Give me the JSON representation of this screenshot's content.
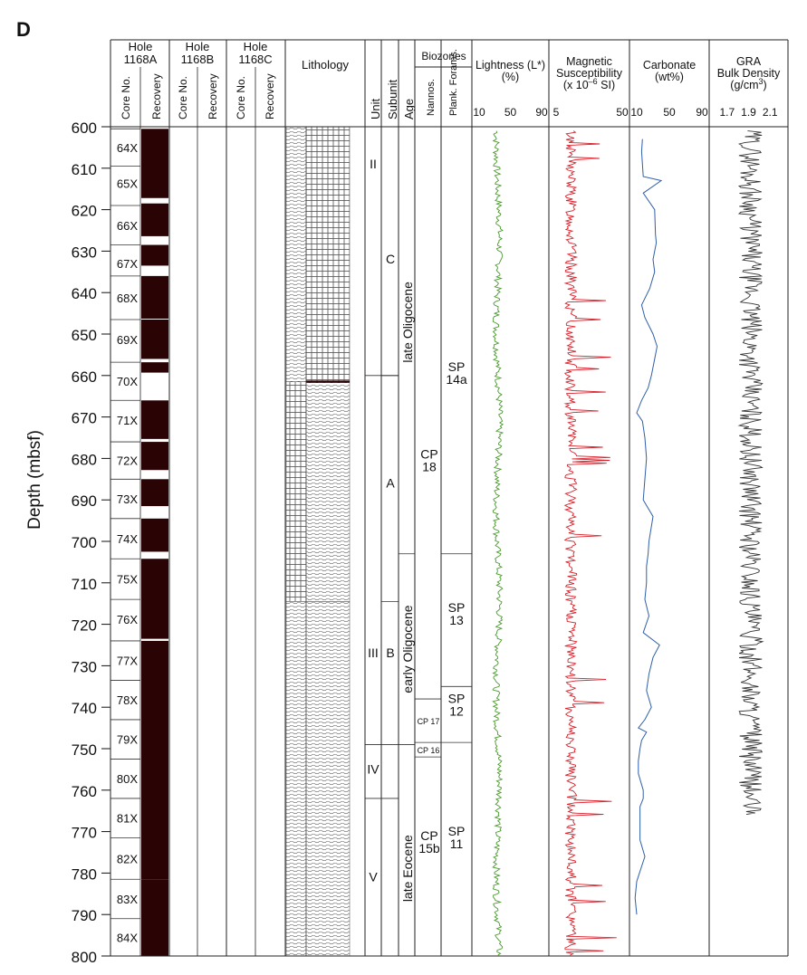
{
  "panel_label": "D",
  "y_axis": {
    "label": "Depth (mbsf)",
    "min": 600,
    "max": 800,
    "ticks": [
      "600",
      "610",
      "620",
      "630",
      "640",
      "650",
      "660",
      "670",
      "680",
      "690",
      "700",
      "710",
      "720",
      "730",
      "740",
      "750",
      "760",
      "770",
      "780",
      "790",
      "800"
    ]
  },
  "holes": [
    {
      "title1": "Hole",
      "title2": "1168A"
    },
    {
      "title1": "Hole",
      "title2": "1168B"
    },
    {
      "title1": "Hole",
      "title2": "1168C"
    }
  ],
  "sub_headers": {
    "core_no": "Core No.",
    "recovery": "Recovery"
  },
  "lithology_header": "Lithology",
  "strat_headers": {
    "unit": "Unit",
    "subunit": "Subunit",
    "age": "Age",
    "biozones": "Biozones",
    "nannos": "Nannos.",
    "plank": "Plank. Forams."
  },
  "cores": [
    {
      "label": "64X",
      "top": 600.5,
      "bottom": 609.5,
      "rec_bottom": 617.2
    },
    {
      "label": "65X",
      "top": 609.5,
      "bottom": 617.7,
      "rec_bottom": 617.2
    },
    {
      "label": "66X",
      "top": 619.0,
      "bottom": 628.5,
      "rec_bottom": 626.4
    },
    {
      "label": "67X",
      "top": 628.5,
      "bottom": 637.5,
      "rec_bottom": 633.5
    },
    {
      "label": "68X",
      "top": 636.0,
      "bottom": 646.5,
      "rec_bottom": 646.3
    },
    {
      "label": "69X",
      "top": 646.5,
      "bottom": 656.2,
      "rec_bottom": 656.0
    },
    {
      "label": "70X",
      "top": 656.8,
      "bottom": 666.0,
      "rec_bottom": 659.3
    },
    {
      "label": "71X",
      "top": 666.0,
      "bottom": 675.4,
      "rec_bottom": 675.3
    },
    {
      "label": "72X",
      "top": 676.0,
      "bottom": 685.0,
      "rec_bottom": 682.8
    },
    {
      "label": "73X",
      "top": 685.0,
      "bottom": 694.5,
      "rec_bottom": 691.5
    },
    {
      "label": "74X",
      "top": 694.5,
      "bottom": 704.2,
      "rec_bottom": 702.5
    },
    {
      "label": "75X",
      "top": 704.2,
      "bottom": 714.0,
      "rec_bottom": 723.5
    },
    {
      "label": "76X",
      "top": 714.0,
      "bottom": 723.5,
      "rec_bottom": 723.5
    },
    {
      "label": "77X",
      "top": 724.0,
      "bottom": 733.5,
      "rec_bottom": 781.5
    },
    {
      "label": "78X",
      "top": 733.5,
      "bottom": 743.0,
      "rec_bottom": 781.5
    },
    {
      "label": "79X",
      "top": 743.0,
      "bottom": 752.5,
      "rec_bottom": 781.5
    },
    {
      "label": "80X",
      "top": 752.5,
      "bottom": 762.0,
      "rec_bottom": 781.5
    },
    {
      "label": "81X",
      "top": 762.0,
      "bottom": 771.5,
      "rec_bottom": 781.5
    },
    {
      "label": "82X",
      "top": 771.5,
      "bottom": 781.5,
      "rec_bottom": 781.5
    },
    {
      "label": "83X",
      "top": 781.5,
      "bottom": 791.0,
      "rec_bottom": 800
    },
    {
      "label": "84X",
      "top": 791.0,
      "bottom": 800.0,
      "rec_bottom": 800
    }
  ],
  "recovery_blocks": [
    [
      600.5,
      617.2
    ],
    [
      618.5,
      626.4
    ],
    [
      628.5,
      633.5
    ],
    [
      636.0,
      646.3
    ],
    [
      646.5,
      656.0
    ],
    [
      656.8,
      659.3
    ],
    [
      666.0,
      675.3
    ],
    [
      676.0,
      682.8
    ],
    [
      685.0,
      691.5
    ],
    [
      694.5,
      702.5
    ],
    [
      704.2,
      723.5
    ],
    [
      724.0,
      781.5
    ],
    [
      781.5,
      800
    ]
  ],
  "lithology": [
    {
      "from": 600,
      "to": 661.5,
      "left": "wavy",
      "right": "brick"
    },
    {
      "from": 661.5,
      "to": 714.5,
      "left": "brick",
      "right": "wavy"
    },
    {
      "from": 714.5,
      "to": 800,
      "left": "wavy",
      "right": "wavy"
    }
  ],
  "units": [
    {
      "label": "II",
      "from": 600,
      "to": 660
    },
    {
      "label": "III",
      "from": 660,
      "to": 749
    },
    {
      "label": "IV",
      "from": 749,
      "to": 762
    },
    {
      "label": "V",
      "from": 762,
      "to": 800
    }
  ],
  "subunits": [
    {
      "label": "C",
      "from": 600,
      "to": 660
    },
    {
      "label": "A",
      "from": 660,
      "to": 714.5
    },
    {
      "label": "B",
      "from": 714.5,
      "to": 749
    }
  ],
  "ages": [
    {
      "label": "late Oligocene",
      "from": 600,
      "to": 703
    },
    {
      "label": "early Oligocene",
      "from": 703,
      "to": 749
    },
    {
      "label": "late Eocene",
      "from": 749,
      "to": 800
    }
  ],
  "nannos": [
    {
      "label1": "CP",
      "label2": "18",
      "from": 600,
      "to": 738,
      "big": true
    },
    {
      "label1": "CP 17",
      "label2": "",
      "from": 738,
      "to": 748.5,
      "big": false
    },
    {
      "label1": "CP 16",
      "label2": "",
      "from": 748.5,
      "to": 752,
      "big": false
    },
    {
      "label1": "CP",
      "label2": "15b",
      "from": 752,
      "to": 800,
      "big": true
    }
  ],
  "forams": [
    {
      "label1": "SP",
      "label2": "14a",
      "from": 600,
      "to": 703
    },
    {
      "label1": "SP",
      "label2": "13",
      "from": 703,
      "to": 735
    },
    {
      "label1": "SP",
      "label2": "12",
      "from": 735,
      "to": 748.5
    },
    {
      "label1": "SP",
      "label2": "11",
      "from": 748.5,
      "to": 800
    }
  ],
  "logs": [
    {
      "key": "lightness",
      "title1": "Lightness (L*)",
      "title2": "(%)",
      "ticks": [
        "10",
        "50",
        "90"
      ],
      "min": 10,
      "max": 90,
      "color": "#4a9a2c"
    },
    {
      "key": "magsus",
      "title1": "Magnetic",
      "title2": "Susceptibility",
      "title3": "(x 10",
      "title3_sup": "–6",
      "title3_tail": " SI)",
      "ticks": [
        "5",
        "50"
      ],
      "min": 5,
      "max": 50,
      "color": "#d8202a"
    },
    {
      "key": "carbonate",
      "title1": "Carbonate",
      "title2": "(wt%)",
      "ticks": [
        "10",
        "50",
        "90"
      ],
      "min": 10,
      "max": 90,
      "color": "#2f5fa8"
    },
    {
      "key": "gra",
      "title1": "GRA",
      "title2": "Bulk Density",
      "title3": "(g/cm",
      "title3_sup": "3",
      "title3_tail": ")",
      "ticks": [
        "1.7",
        "1.9",
        "2.1"
      ],
      "min": 1.6,
      "max": 2.2,
      "color": "#333333"
    }
  ],
  "chart_data": {
    "type": "line",
    "ylabel": "Depth (mbsf)",
    "ylim": [
      600,
      800
    ],
    "series": [
      {
        "name": "Carbonate",
        "x": [
          17,
          16,
          17,
          18,
          40,
          18,
          32,
          33,
          34,
          30,
          32,
          26,
          16,
          20,
          30,
          35,
          32,
          28,
          24,
          16,
          10,
          17,
          20,
          22,
          20,
          18,
          30,
          25,
          24,
          22,
          22,
          20,
          25,
          18,
          38,
          30,
          25,
          22,
          28,
          20,
          12,
          22,
          16,
          14,
          12,
          12,
          18,
          18,
          14,
          14,
          14,
          20,
          10,
          8,
          10
        ],
        "y": [
          603,
          606,
          609,
          612,
          613,
          616,
          620,
          626,
          628,
          632,
          635,
          639,
          643,
          646,
          650,
          653,
          656,
          660,
          663,
          666,
          669,
          671,
          675,
          680,
          685,
          690,
          694,
          700,
          703,
          706,
          710,
          714,
          718,
          722,
          725,
          728,
          732,
          736,
          740,
          743,
          745,
          746,
          748,
          750,
          753,
          756,
          760,
          762,
          764,
          768,
          772,
          776,
          782,
          786,
          790
        ]
      },
      {
        "name": "Lightness (L*)",
        "x_range": [
          25,
          45
        ],
        "y_range": [
          601,
          800
        ]
      },
      {
        "name": "Magnetic Susceptibility",
        "x_range": [
          8,
          40
        ],
        "y_range": [
          601,
          800
        ]
      },
      {
        "name": "GRA Bulk Density",
        "x_range": [
          1.7,
          2.15
        ],
        "y_range": [
          601,
          766
        ]
      }
    ]
  }
}
